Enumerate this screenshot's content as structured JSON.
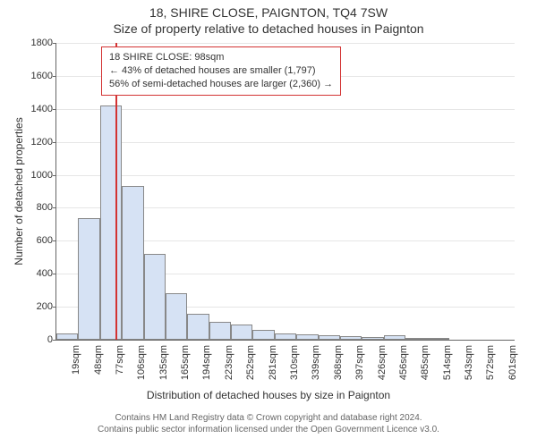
{
  "header": {
    "line1": "18, SHIRE CLOSE, PAIGNTON, TQ4 7SW",
    "line2": "Size of property relative to detached houses in Paignton"
  },
  "chart": {
    "type": "histogram",
    "bar_fill": "#d6e2f4",
    "bar_border": "#888888",
    "grid_color": "#e6e6e6",
    "axis_color": "#666666",
    "background_color": "#ffffff",
    "marker_color": "#d33333",
    "ylabel": "Number of detached properties",
    "xlabel": "Distribution of detached houses by size in Paignton",
    "ylim": [
      0,
      1800
    ],
    "ytick_step": 200,
    "xtick_labels": [
      "19sqm",
      "48sqm",
      "77sqm",
      "106sqm",
      "135sqm",
      "165sqm",
      "194sqm",
      "223sqm",
      "252sqm",
      "281sqm",
      "310sqm",
      "339sqm",
      "368sqm",
      "397sqm",
      "426sqm",
      "456sqm",
      "485sqm",
      "514sqm",
      "543sqm",
      "572sqm",
      "601sqm"
    ],
    "bar_values": [
      40,
      740,
      1420,
      930,
      520,
      280,
      160,
      110,
      90,
      60,
      40,
      30,
      25,
      20,
      15,
      25,
      10,
      5,
      0,
      0,
      0
    ],
    "marker_x_sqm": 98,
    "tick_fontsize": 11,
    "label_fontsize": 12,
    "annotation": {
      "line1": "18 SHIRE CLOSE: 98sqm",
      "line2": "← 43% of detached houses are smaller (1,797)",
      "line3": "56% of semi-detached houses are larger (2,360) →"
    }
  },
  "footer": {
    "line1": "Contains HM Land Registry data © Crown copyright and database right 2024.",
    "line2": "Contains public sector information licensed under the Open Government Licence v3.0."
  }
}
